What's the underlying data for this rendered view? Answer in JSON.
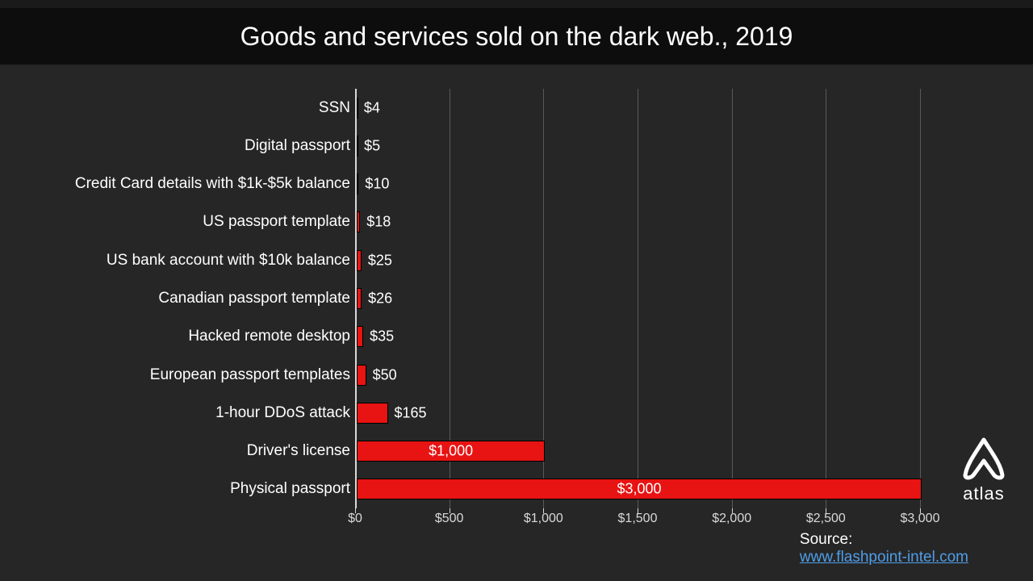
{
  "title": "Goods and services sold on the dark web., 2019",
  "chart": {
    "type": "bar-horizontal",
    "background_color": "#262626",
    "title_band_color": "#0d0d0d",
    "bar_color": "#e81313",
    "bar_border_color": "#000000",
    "text_color": "#ffffff",
    "grid_color": "#595959",
    "axis_color": "#d9d9d9",
    "title_fontsize": 32,
    "label_fontsize": 19,
    "value_fontsize": 18,
    "tick_fontsize": 16,
    "xlim": [
      0,
      3000
    ],
    "xtick_step": 500,
    "xticks": [
      {
        "v": 0,
        "label": "$0"
      },
      {
        "v": 500,
        "label": "$500"
      },
      {
        "v": 1000,
        "label": "$1,000"
      },
      {
        "v": 1500,
        "label": "$1,500"
      },
      {
        "v": 2000,
        "label": "$2,000"
      },
      {
        "v": 2500,
        "label": "$2,500"
      },
      {
        "v": 3000,
        "label": "$3,000"
      }
    ],
    "rows": [
      {
        "label": "SSN",
        "value": 4,
        "value_label": "$4"
      },
      {
        "label": "Digital passport",
        "value": 5,
        "value_label": "$5"
      },
      {
        "label": "Credit Card details with $1k-$5k balance",
        "value": 10,
        "value_label": "$10"
      },
      {
        "label": "US passport template",
        "value": 18,
        "value_label": "$18"
      },
      {
        "label": "US bank account with $10k balance",
        "value": 25,
        "value_label": "$25"
      },
      {
        "label": "Canadian passport template",
        "value": 26,
        "value_label": "$26"
      },
      {
        "label": "Hacked remote desktop",
        "value": 35,
        "value_label": "$35"
      },
      {
        "label": "European passport templates",
        "value": 50,
        "value_label": "$50"
      },
      {
        "label": "1-hour DDoS attack",
        "value": 165,
        "value_label": "$165"
      },
      {
        "label": "Driver's license",
        "value": 1000,
        "value_label": "$1,000"
      },
      {
        "label": "Physical passport",
        "value": 3000,
        "value_label": "$3,000"
      }
    ]
  },
  "source_label": "Source:",
  "source_link_text": "www.flashpoint-intel.com",
  "logo_text": "atlas"
}
